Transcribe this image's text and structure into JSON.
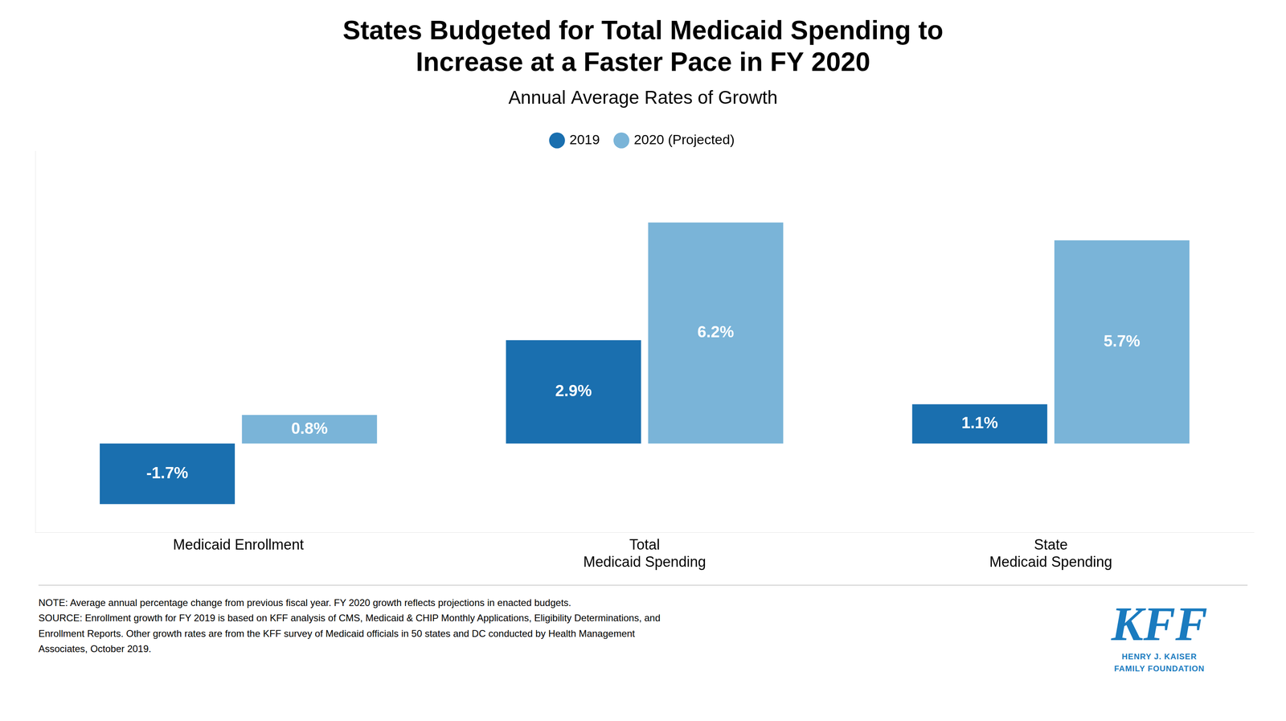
{
  "chart_data": {
    "type": "bar",
    "title": [
      "States Budgeted for Total Medicaid Spending to",
      "Increase at a Faster Pace in FY 2020"
    ],
    "subtitle": "Annual Average Rates of Growth",
    "categories": [
      "Medicaid Enrollment",
      "Total\nMedicaid Spending",
      "State\nMedicaid Spending"
    ],
    "series": [
      {
        "name": "2019",
        "color": "#1a6faf",
        "values": [
          -1.7,
          2.9,
          1.1
        ],
        "value_labels": [
          "-1.7%",
          "2.9%",
          "1.1%"
        ]
      },
      {
        "name": "2020 (Projected)",
        "color": "#7ab4d8",
        "values": [
          0.8,
          6.2,
          5.7
        ],
        "value_labels": [
          "0.8%",
          "6.2%",
          "5.7%"
        ]
      }
    ],
    "ylim": [
      -2.5,
      8.2
    ],
    "grid": false,
    "legend": "top",
    "data_labels": true,
    "tick_labels": "x",
    "notes": [
      "NOTE: Average annual percentage change from previous fiscal year. FY 2020 growth reflects projections in enacted budgets.",
      "SOURCE: Enrollment growth for FY 2019 is based on KFF analysis of CMS, Medicaid & CHIP Monthly Applications, Eligibility Determinations, and",
      "Enrollment Reports. Other growth rates are from the KFF survey of Medicaid officials in 50 states and DC conducted by Health Management",
      "Associates, October 2019."
    ],
    "logo": {
      "text": [
        "KFF",
        "HENRY J. KAISER",
        "FAMILY FOUNDATION"
      ],
      "color": "#1a7bbf"
    }
  }
}
